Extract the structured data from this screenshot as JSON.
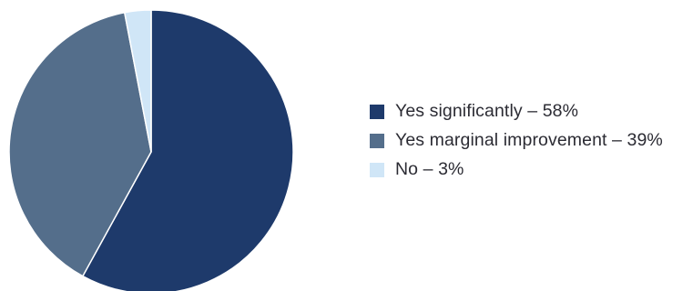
{
  "chart_data": {
    "type": "pie",
    "title": "",
    "slices": [
      {
        "label": "Yes significantly",
        "value": 58,
        "color": "#1e3a6b"
      },
      {
        "label": "Yes marginal improvement",
        "value": 39,
        "color": "#546e8b"
      },
      {
        "label": "No",
        "value": 3,
        "color": "#d0e6f7"
      }
    ],
    "legend_position": "right",
    "legend": [
      {
        "text": "Yes significantly – 58%",
        "color": "#1e3a6b"
      },
      {
        "text": "Yes marginal improvement – 39%",
        "color": "#546e8b"
      },
      {
        "text": "No – 3%",
        "color": "#d0e6f7"
      }
    ],
    "start_angle_deg": 0,
    "direction": "clockwise"
  }
}
